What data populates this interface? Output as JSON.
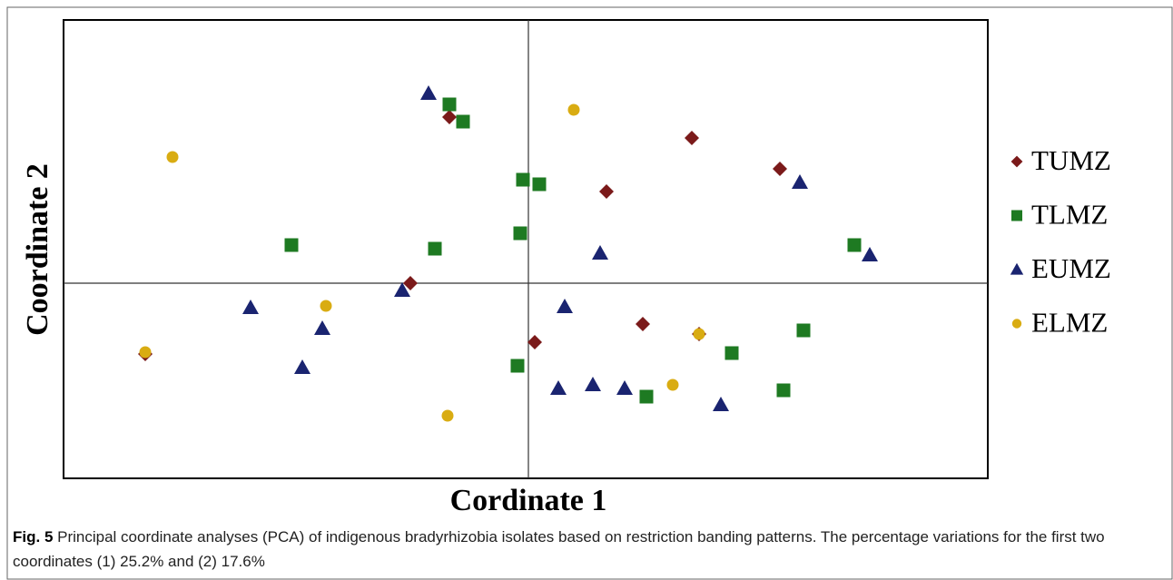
{
  "chart_data": {
    "type": "scatter",
    "xlabel": "Cordinate 1",
    "ylabel": "Coordinate 2",
    "xlim": [
      -5.12,
      5.06
    ],
    "ylim": [
      -2.15,
      2.9
    ],
    "caption_label": "Fig. 5",
    "caption": "Principal coordinate analyses (PCA) of indigenous bradyrhizobia isolates based on restriction banding patterns. The percentage variations for the first two coordinates (1) 25.2% and (2) 17.6%",
    "series": [
      {
        "name": "TUMZ",
        "color": "#7b1a1a",
        "marker": "diamond",
        "x": [
          -0.87,
          1.8,
          2.77,
          0.86,
          -1.3,
          1.26,
          0.07,
          -4.22,
          1.88
        ],
        "y": [
          1.83,
          1.6,
          1.26,
          1.01,
          0.0,
          -0.45,
          -0.65,
          -0.78,
          -0.56
        ]
      },
      {
        "name": "TLMZ",
        "color": "#1e7a22",
        "marker": "square",
        "x": [
          -0.87,
          -0.72,
          -0.06,
          0.12,
          -0.09,
          -2.61,
          -1.03,
          3.59,
          3.03,
          2.24,
          -0.12,
          1.3,
          2.81
        ],
        "y": [
          1.97,
          1.78,
          1.14,
          1.09,
          0.55,
          0.42,
          0.38,
          0.42,
          -0.52,
          -0.77,
          -0.91,
          -1.25,
          -1.18
        ]
      },
      {
        "name": "EUMZ",
        "color": "#1a2470",
        "marker": "triangle",
        "x": [
          -1.1,
          2.99,
          0.79,
          3.76,
          -1.39,
          -3.06,
          0.4,
          -2.27,
          -2.49,
          0.33,
          0.71,
          1.06,
          2.12
        ],
        "y": [
          2.09,
          1.11,
          0.33,
          0.31,
          -0.08,
          -0.27,
          -0.26,
          -0.5,
          -0.93,
          -1.16,
          -1.12,
          -1.16,
          -1.34
        ]
      },
      {
        "name": "ELMZ",
        "color": "#d9ac12",
        "marker": "circle",
        "x": [
          -3.92,
          0.5,
          -2.23,
          -4.22,
          1.88,
          1.59,
          -0.89
        ],
        "y": [
          1.39,
          1.91,
          -0.25,
          -0.76,
          -0.56,
          -1.12,
          -1.46
        ]
      }
    ]
  }
}
